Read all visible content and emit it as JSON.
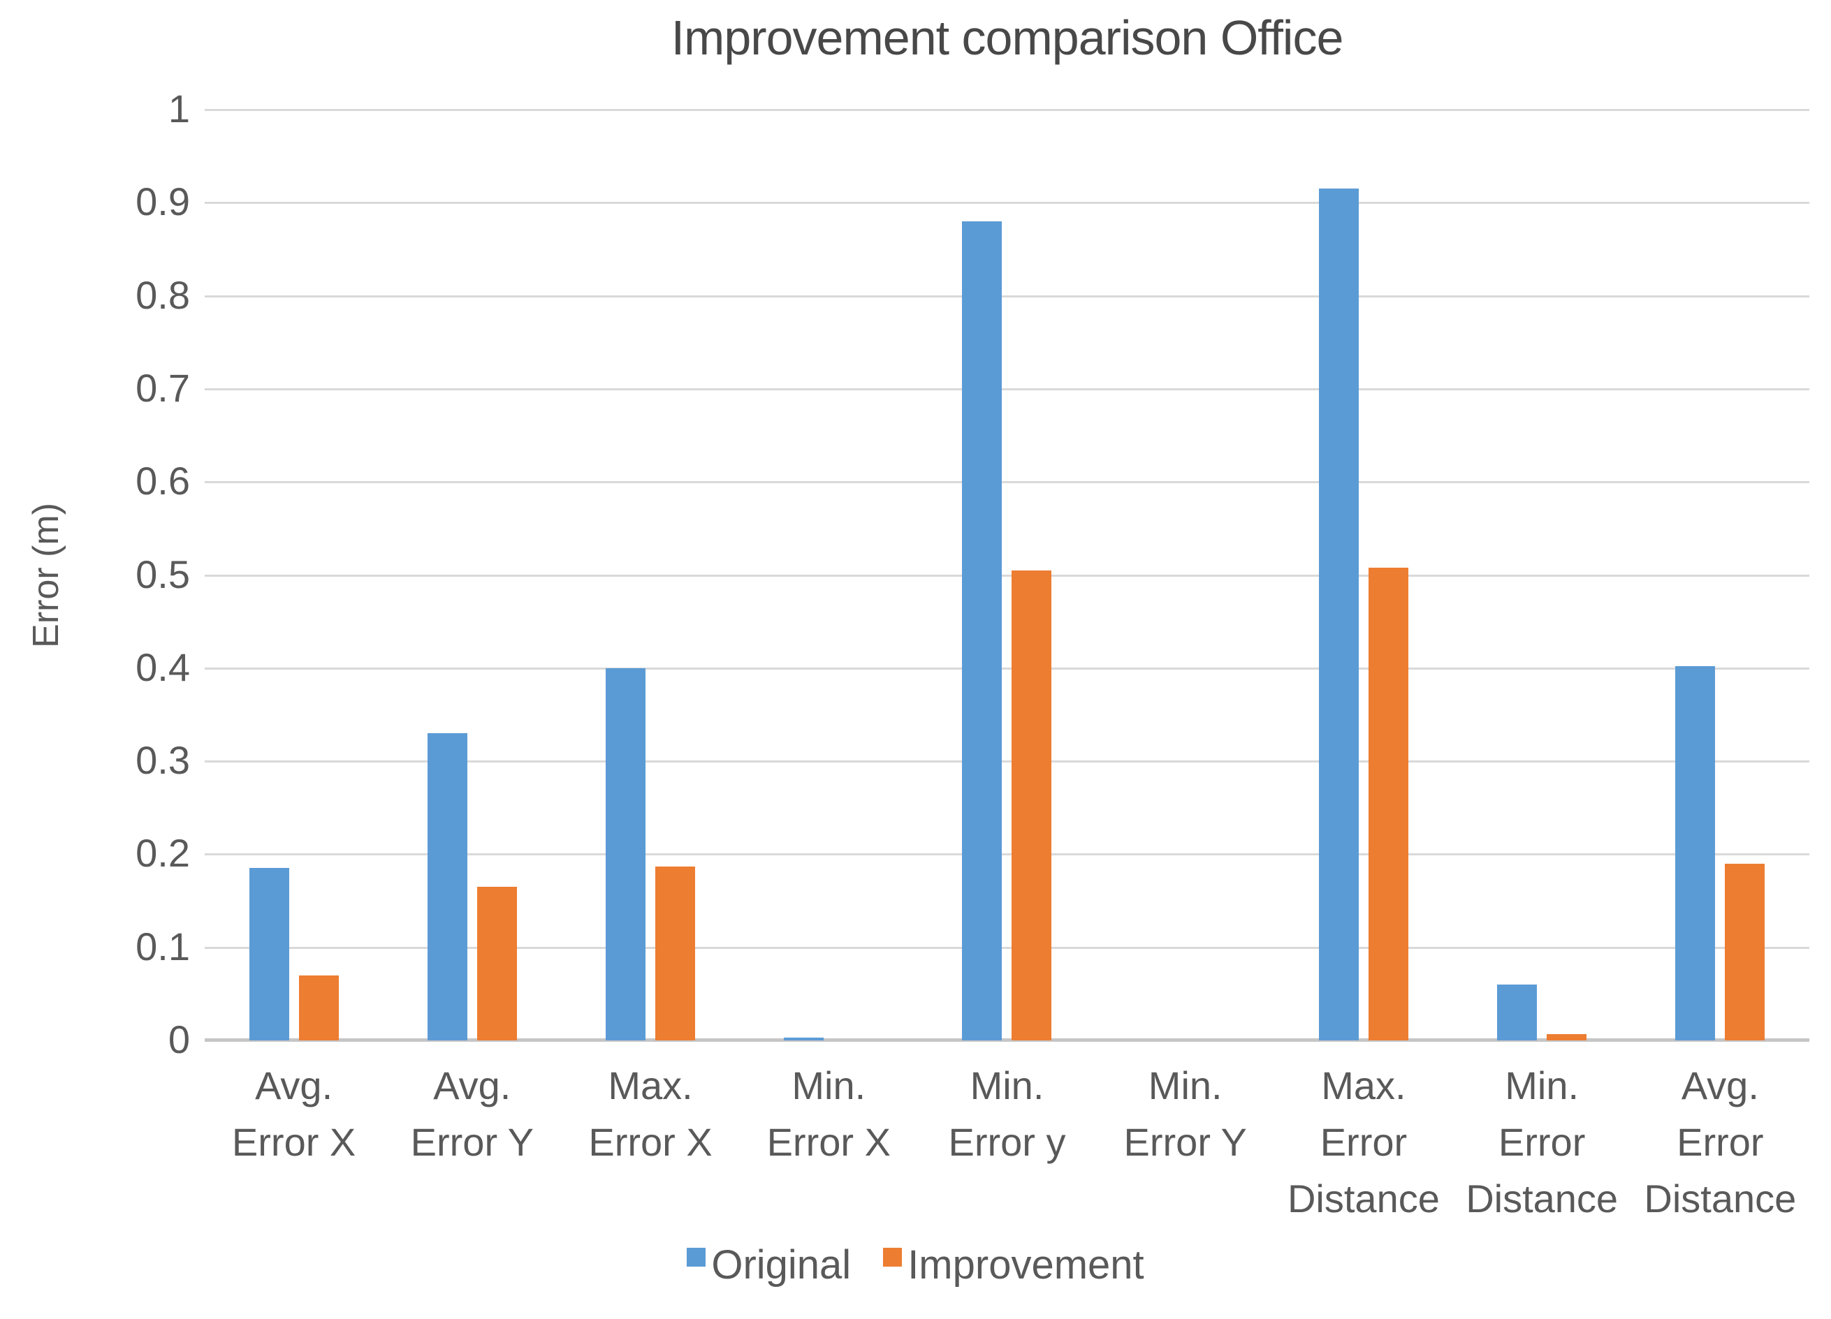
{
  "chart_data": {
    "type": "bar",
    "title": "Improvement comparison Office",
    "ylabel": "Error (m)",
    "ylim": [
      0,
      1
    ],
    "ytick_step": 0.1,
    "yticks": [
      "1",
      "0.9",
      "0.8",
      "0.7",
      "0.6",
      "0.5",
      "0.4",
      "0.3",
      "0.2",
      "0.1",
      "0"
    ],
    "grid": true,
    "legend_position": "bottom",
    "background": "#ffffff",
    "gridline_color": "#d9d9d9",
    "text_color": "#595959",
    "categories": [
      "Avg. Error X",
      "Avg. Error Y",
      "Max. Error X",
      "Min. Error X",
      "Min. Error y",
      "Min. Error Y",
      "Max. Error Distance",
      "Min. Error Distance",
      "Avg. Error Distance"
    ],
    "category_lines": [
      [
        "Avg.",
        "Error X"
      ],
      [
        "Avg.",
        "Error Y"
      ],
      [
        "Max.",
        "Error X"
      ],
      [
        "Min.",
        "Error X"
      ],
      [
        "Min.",
        "Error y"
      ],
      [
        "Min.",
        "Error Y"
      ],
      [
        "Max.",
        "Error",
        "Distance"
      ],
      [
        "Min.",
        "Error",
        "Distance"
      ],
      [
        "Avg.",
        "Error",
        "Distance"
      ]
    ],
    "series": [
      {
        "name": "Original",
        "color": "#5B9BD5",
        "values": [
          0.185,
          0.33,
          0.4,
          0.003,
          0.88,
          0,
          0.915,
          0.06,
          0.402
        ]
      },
      {
        "name": "Improvement",
        "color": "#ED7D31",
        "values": [
          0.07,
          0.165,
          0.187,
          0,
          0.505,
          0,
          0.508,
          0.007,
          0.19
        ]
      }
    ]
  }
}
